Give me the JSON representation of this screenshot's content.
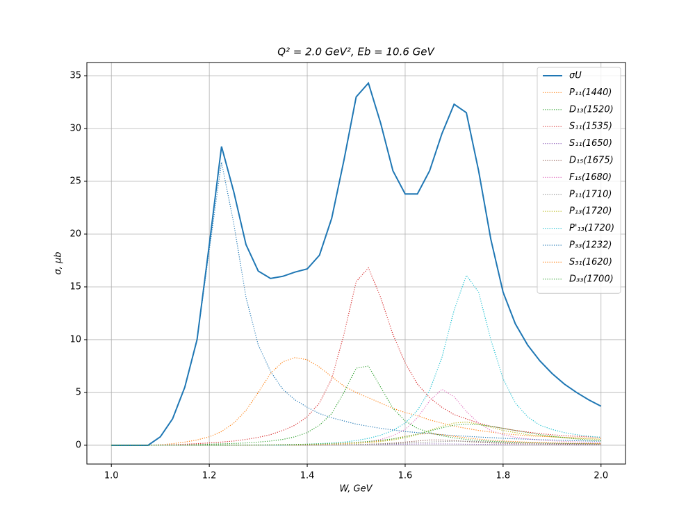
{
  "chart_data": {
    "type": "line",
    "title": "Q² = 2.0 GeV²,  Eb = 10.6 GeV",
    "x_label": "W, GeV",
    "y_label": "σ, μb",
    "x": [
      1.0,
      1.025,
      1.05,
      1.075,
      1.1,
      1.125,
      1.15,
      1.175,
      1.2,
      1.225,
      1.25,
      1.275,
      1.3,
      1.325,
      1.35,
      1.375,
      1.4,
      1.425,
      1.45,
      1.475,
      1.5,
      1.525,
      1.55,
      1.575,
      1.6,
      1.625,
      1.65,
      1.675,
      1.7,
      1.725,
      1.75,
      1.775,
      1.8,
      1.825,
      1.85,
      1.875,
      1.9,
      1.925,
      1.95,
      1.975,
      2.0
    ],
    "series": [
      {
        "name": "σU",
        "color": "#1f77b4",
        "style": "solid",
        "values": [
          0,
          0,
          0,
          0,
          0.8,
          2.5,
          5.5,
          10,
          19,
          28.3,
          24,
          19,
          16.5,
          15.8,
          16,
          16.4,
          16.7,
          18,
          21.5,
          27,
          33,
          34.3,
          30.5,
          26,
          23.8,
          23.8,
          26,
          29.5,
          32.3,
          31.5,
          26,
          19.5,
          14.5,
          11.5,
          9.5,
          8,
          6.8,
          5.8,
          5,
          4.3,
          3.7
        ]
      },
      {
        "name": "P₁₁(1440)",
        "color": "#ff7f0e",
        "style": "dotted",
        "values": [
          0,
          0,
          0,
          0,
          0.05,
          0.15,
          0.3,
          0.5,
          0.8,
          1.3,
          2.1,
          3.3,
          5,
          6.8,
          7.9,
          8.3,
          8.1,
          7.4,
          6.5,
          5.6,
          5,
          4.5,
          4,
          3.5,
          3.1,
          2.8,
          2.4,
          2.1,
          1.8,
          1.6,
          1.4,
          1.25,
          1.1,
          1.0,
          0.9,
          0.85,
          0.8,
          0.75,
          0.7,
          0.68,
          0.65
        ]
      },
      {
        "name": "D₁₃(1520)",
        "color": "#2ca02c",
        "style": "dotted",
        "values": [
          0,
          0,
          0,
          0,
          0,
          0.02,
          0.04,
          0.06,
          0.1,
          0.13,
          0.17,
          0.22,
          0.3,
          0.4,
          0.55,
          0.8,
          1.2,
          1.9,
          3.0,
          5.0,
          7.3,
          7.5,
          5.5,
          3.5,
          2.3,
          1.6,
          1.2,
          0.9,
          0.7,
          0.55,
          0.45,
          0.38,
          0.32,
          0.28,
          0.24,
          0.21,
          0.19,
          0.17,
          0.15,
          0.14,
          0.12
        ]
      },
      {
        "name": "S₁₁(1535)",
        "color": "#d62728",
        "style": "dotted",
        "values": [
          0,
          0,
          0,
          0,
          0.02,
          0.05,
          0.1,
          0.15,
          0.22,
          0.3,
          0.4,
          0.55,
          0.75,
          1.0,
          1.4,
          1.9,
          2.7,
          4,
          6.3,
          10.5,
          15.5,
          16.8,
          14,
          10.5,
          7.8,
          5.8,
          4.5,
          3.6,
          2.9,
          2.5,
          2.1,
          1.8,
          1.6,
          1.4,
          1.25,
          1.1,
          1.0,
          0.9,
          0.85,
          0.8,
          0.75
        ]
      },
      {
        "name": "S₁₁(1650)",
        "color": "#9467bd",
        "style": "dotted",
        "values": [
          0,
          0,
          0,
          0,
          0,
          0,
          0,
          0,
          0,
          0,
          0,
          0,
          0,
          0,
          0,
          0.01,
          0.01,
          0.02,
          0.02,
          0.03,
          0.04,
          0.05,
          0.06,
          0.08,
          0.1,
          0.12,
          0.13,
          0.13,
          0.12,
          0.1,
          0.09,
          0.08,
          0.07,
          0.06,
          0.05,
          0.05,
          0.04,
          0.04,
          0.03,
          0.03,
          0.03
        ]
      },
      {
        "name": "D₁₅(1675)",
        "color": "#8c564b",
        "style": "dotted",
        "values": [
          0,
          0,
          0,
          0,
          0,
          0,
          0,
          0,
          0,
          0,
          0,
          0,
          0,
          0,
          0,
          0.01,
          0.02,
          0.03,
          0.04,
          0.05,
          0.07,
          0.1,
          0.14,
          0.2,
          0.3,
          0.4,
          0.5,
          0.5,
          0.45,
          0.35,
          0.28,
          0.22,
          0.18,
          0.15,
          0.13,
          0.11,
          0.1,
          0.09,
          0.08,
          0.07,
          0.07
        ]
      },
      {
        "name": "F₁₅(1680)",
        "color": "#e377c2",
        "style": "dotted",
        "values": [
          0,
          0,
          0,
          0,
          0,
          0,
          0,
          0,
          0,
          0,
          0,
          0,
          0,
          0,
          0,
          0.02,
          0.04,
          0.06,
          0.1,
          0.15,
          0.22,
          0.35,
          0.55,
          0.9,
          1.5,
          2.6,
          4.2,
          5.3,
          4.6,
          3.2,
          2.1,
          1.4,
          1.0,
          0.75,
          0.6,
          0.5,
          0.42,
          0.36,
          0.32,
          0.28,
          0.25
        ]
      },
      {
        "name": "P₁₁(1710)",
        "color": "#7f7f7f",
        "style": "dotted",
        "values": [
          0,
          0,
          0,
          0,
          0,
          0,
          0,
          0,
          0,
          0,
          0,
          0,
          0,
          0,
          0,
          0.01,
          0.02,
          0.03,
          0.04,
          0.05,
          0.07,
          0.09,
          0.12,
          0.15,
          0.2,
          0.25,
          0.3,
          0.35,
          0.38,
          0.38,
          0.35,
          0.3,
          0.26,
          0.22,
          0.2,
          0.18,
          0.16,
          0.15,
          0.14,
          0.13,
          0.12
        ]
      },
      {
        "name": "P₁₃(1720)",
        "color": "#bcbd22",
        "style": "dotted",
        "values": [
          0,
          0,
          0,
          0,
          0,
          0,
          0,
          0,
          0,
          0,
          0,
          0,
          0,
          0,
          0,
          0.02,
          0.04,
          0.06,
          0.09,
          0.13,
          0.18,
          0.25,
          0.35,
          0.5,
          0.7,
          1.0,
          1.4,
          1.8,
          2.1,
          2.2,
          2.0,
          1.7,
          1.4,
          1.2,
          1.0,
          0.9,
          0.8,
          0.72,
          0.66,
          0.6,
          0.55
        ]
      },
      {
        "name": "P'₁₃(1720)",
        "color": "#17becf",
        "style": "dotted",
        "values": [
          0,
          0,
          0,
          0,
          0,
          0,
          0,
          0,
          0,
          0,
          0,
          0,
          0,
          0,
          0,
          0.05,
          0.1,
          0.15,
          0.22,
          0.3,
          0.45,
          0.65,
          0.95,
          1.4,
          2.1,
          3.3,
          5.2,
          8.3,
          12.8,
          16.1,
          14.5,
          10,
          6.3,
          4.0,
          2.7,
          1.9,
          1.5,
          1.2,
          1.0,
          0.85,
          0.75
        ]
      },
      {
        "name": "P₃₃(1232)",
        "color": "#1f77b4",
        "style": "dotted",
        "values": [
          0,
          0,
          0,
          0,
          0.8,
          2.5,
          5.5,
          10,
          18.5,
          26.8,
          21,
          14,
          9.5,
          7,
          5.3,
          4.3,
          3.6,
          3.0,
          2.6,
          2.3,
          2.0,
          1.8,
          1.6,
          1.45,
          1.3,
          1.2,
          1.1,
          1.0,
          0.92,
          0.85,
          0.78,
          0.72,
          0.66,
          0.61,
          0.57,
          0.53,
          0.5,
          0.46,
          0.43,
          0.4,
          0.38
        ]
      },
      {
        "name": "S₃₁(1620)",
        "color": "#ff7f0e",
        "style": "dotted",
        "values": [
          0,
          0,
          0,
          0,
          0,
          0,
          0,
          0,
          0,
          0,
          0.01,
          0.01,
          0.02,
          0.03,
          0.04,
          0.06,
          0.08,
          0.1,
          0.13,
          0.17,
          0.23,
          0.3,
          0.42,
          0.6,
          0.85,
          1.05,
          1.1,
          1.0,
          0.85,
          0.7,
          0.58,
          0.48,
          0.4,
          0.34,
          0.29,
          0.25,
          0.22,
          0.2,
          0.18,
          0.16,
          0.15
        ]
      },
      {
        "name": "D₃₃(1700)",
        "color": "#2ca02c",
        "style": "dotted",
        "values": [
          0,
          0,
          0,
          0,
          0,
          0,
          0,
          0,
          0,
          0,
          0.01,
          0.02,
          0.03,
          0.04,
          0.06,
          0.08,
          0.1,
          0.13,
          0.17,
          0.22,
          0.28,
          0.36,
          0.46,
          0.6,
          0.8,
          1.05,
          1.35,
          1.65,
          1.9,
          2.0,
          1.95,
          1.8,
          1.6,
          1.4,
          1.2,
          1.0,
          0.85,
          0.72,
          0.6,
          0.5,
          0.42
        ]
      }
    ],
    "xlim": [
      0.95,
      2.05
    ],
    "ylim": [
      -1.78,
      36.25
    ],
    "xticks": [
      {
        "value": 1,
        "label": "1.0"
      },
      1.2,
      1.4,
      1.6,
      1.8,
      {
        "value": 2,
        "label": "2.0"
      }
    ],
    "yticks": [
      0,
      5,
      10,
      15,
      20,
      25,
      30,
      35
    ],
    "grid": true,
    "legend": "upper-right"
  }
}
